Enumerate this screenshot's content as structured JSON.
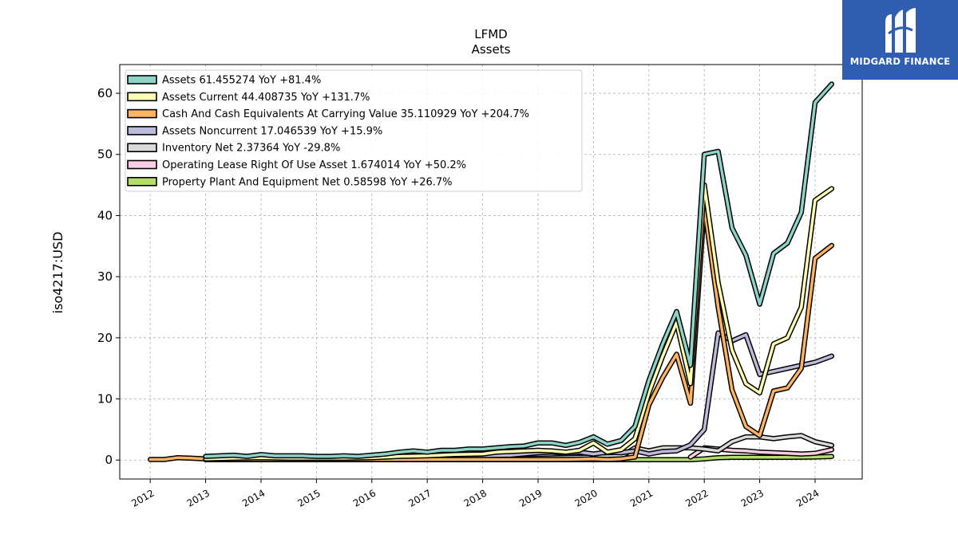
{
  "brand": {
    "name": "MIDGARD FINANCE",
    "logo_icon": "midgard-m-logo-icon",
    "bg_color": "#2f5db0"
  },
  "chart_data": {
    "type": "line",
    "title": "LFMD",
    "subtitle": "Assets",
    "ylabel": "iso4217:USD",
    "xlabel": "",
    "xlim": [
      2011.45,
      2024.85
    ],
    "ylim": [
      -3.1,
      64.7
    ],
    "yticks": [
      0,
      10,
      20,
      30,
      40,
      50,
      60
    ],
    "xticks": [
      "2012",
      "2013",
      "2014",
      "2015",
      "2016",
      "2017",
      "2018",
      "2019",
      "2020",
      "2021",
      "2022",
      "2023",
      "2024"
    ],
    "grid": true,
    "legend_position": "upper-left",
    "series": [
      {
        "name": "Assets  61.455274 YoY +81.4%",
        "color": "#8dd3c7",
        "points": [
          [
            2013.0,
            0.6
          ],
          [
            2013.25,
            0.7
          ],
          [
            2013.5,
            0.8
          ],
          [
            2013.75,
            0.6
          ],
          [
            2014.0,
            0.9
          ],
          [
            2014.25,
            0.7
          ],
          [
            2014.5,
            0.7
          ],
          [
            2014.75,
            0.7
          ],
          [
            2015.0,
            0.6
          ],
          [
            2015.25,
            0.6
          ],
          [
            2015.5,
            0.7
          ],
          [
            2015.75,
            0.6
          ],
          [
            2016.0,
            0.8
          ],
          [
            2016.25,
            1.0
          ],
          [
            2016.5,
            1.3
          ],
          [
            2016.75,
            1.5
          ],
          [
            2017.0,
            1.3
          ],
          [
            2017.25,
            1.6
          ],
          [
            2017.5,
            1.6
          ],
          [
            2017.75,
            1.8
          ],
          [
            2018.0,
            1.8
          ],
          [
            2018.25,
            2.0
          ],
          [
            2018.5,
            2.2
          ],
          [
            2018.75,
            2.3
          ],
          [
            2019.0,
            2.8
          ],
          [
            2019.25,
            2.8
          ],
          [
            2019.5,
            2.4
          ],
          [
            2019.75,
            2.9
          ],
          [
            2020.0,
            3.8
          ],
          [
            2020.25,
            2.6
          ],
          [
            2020.5,
            3.2
          ],
          [
            2020.75,
            5.5
          ],
          [
            2021.0,
            13.0
          ],
          [
            2021.25,
            19.0
          ],
          [
            2021.5,
            24.3
          ],
          [
            2021.75,
            15.5
          ],
          [
            2022.0,
            50.0
          ],
          [
            2022.25,
            50.5
          ],
          [
            2022.5,
            38.0
          ],
          [
            2022.75,
            33.5
          ],
          [
            2023.0,
            25.5
          ],
          [
            2023.25,
            33.8
          ],
          [
            2023.5,
            35.5
          ],
          [
            2023.75,
            40.5
          ],
          [
            2024.0,
            58.5
          ],
          [
            2024.3,
            61.5
          ]
        ]
      },
      {
        "name": "Assets Current  44.408735 YoY +131.7%",
        "color": "#ffffb3",
        "points": [
          [
            2013.0,
            0.2
          ],
          [
            2013.5,
            0.3
          ],
          [
            2014.0,
            0.4
          ],
          [
            2014.5,
            0.3
          ],
          [
            2015.0,
            0.3
          ],
          [
            2015.5,
            0.3
          ],
          [
            2016.0,
            0.4
          ],
          [
            2016.5,
            0.6
          ],
          [
            2017.0,
            0.7
          ],
          [
            2017.5,
            0.9
          ],
          [
            2018.0,
            1.0
          ],
          [
            2018.25,
            1.3
          ],
          [
            2018.5,
            1.4
          ],
          [
            2018.75,
            1.5
          ],
          [
            2019.0,
            1.6
          ],
          [
            2019.25,
            1.5
          ],
          [
            2019.5,
            1.3
          ],
          [
            2019.75,
            1.6
          ],
          [
            2020.0,
            2.8
          ],
          [
            2020.25,
            1.3
          ],
          [
            2020.5,
            1.7
          ],
          [
            2020.75,
            3.5
          ],
          [
            2021.0,
            11.0
          ],
          [
            2021.25,
            17.0
          ],
          [
            2021.5,
            22.5
          ],
          [
            2021.75,
            12.5
          ],
          [
            2022.0,
            45.0
          ],
          [
            2022.25,
            29.0
          ],
          [
            2022.5,
            18.0
          ],
          [
            2022.75,
            12.5
          ],
          [
            2023.0,
            11.0
          ],
          [
            2023.25,
            19.0
          ],
          [
            2023.5,
            20.0
          ],
          [
            2023.75,
            25.0
          ],
          [
            2024.0,
            42.5
          ],
          [
            2024.3,
            44.4
          ]
        ]
      },
      {
        "name": "Cash And Cash Equivalents At Carrying Value  35.110929 YoY +204.7%",
        "color": "#fdb462",
        "points": [
          [
            2012.0,
            0.1
          ],
          [
            2012.25,
            0.1
          ],
          [
            2012.5,
            0.4
          ],
          [
            2012.75,
            0.3
          ],
          [
            2013.0,
            0.2
          ],
          [
            2013.5,
            0.1
          ],
          [
            2014.0,
            0.1
          ],
          [
            2014.5,
            0.1
          ],
          [
            2015.0,
            0.1
          ],
          [
            2015.5,
            0.1
          ],
          [
            2016.0,
            0.1
          ],
          [
            2016.5,
            0.1
          ],
          [
            2017.0,
            0.1
          ],
          [
            2017.5,
            0.1
          ],
          [
            2018.0,
            0.1
          ],
          [
            2018.5,
            0.1
          ],
          [
            2019.0,
            0.1
          ],
          [
            2019.5,
            0.1
          ],
          [
            2020.0,
            0.2
          ],
          [
            2020.25,
            0.1
          ],
          [
            2020.5,
            0.2
          ],
          [
            2020.75,
            0.5
          ],
          [
            2021.0,
            9.0
          ],
          [
            2021.25,
            13.5
          ],
          [
            2021.5,
            17.3
          ],
          [
            2021.75,
            9.3
          ],
          [
            2022.0,
            41.5
          ],
          [
            2022.25,
            25.0
          ],
          [
            2022.5,
            11.5
          ],
          [
            2022.75,
            5.5
          ],
          [
            2023.0,
            4.0
          ],
          [
            2023.25,
            11.3
          ],
          [
            2023.5,
            11.8
          ],
          [
            2023.75,
            15.0
          ],
          [
            2024.0,
            33.0
          ],
          [
            2024.3,
            35.1
          ]
        ]
      },
      {
        "name": "Assets Noncurrent  17.046539 YoY +15.9%",
        "color": "#bebada",
        "points": [
          [
            2013.0,
            0.3
          ],
          [
            2013.5,
            0.3
          ],
          [
            2014.0,
            0.3
          ],
          [
            2014.5,
            0.3
          ],
          [
            2015.0,
            0.3
          ],
          [
            2015.5,
            0.3
          ],
          [
            2016.0,
            0.3
          ],
          [
            2016.5,
            0.4
          ],
          [
            2017.0,
            0.5
          ],
          [
            2017.5,
            0.6
          ],
          [
            2018.0,
            0.7
          ],
          [
            2018.5,
            0.8
          ],
          [
            2019.0,
            1.2
          ],
          [
            2019.25,
            1.3
          ],
          [
            2019.5,
            1.1
          ],
          [
            2019.75,
            1.3
          ],
          [
            2020.0,
            1.0
          ],
          [
            2020.25,
            1.3
          ],
          [
            2020.5,
            1.2
          ],
          [
            2020.75,
            1.5
          ],
          [
            2021.0,
            1.0
          ],
          [
            2021.25,
            1.4
          ],
          [
            2021.5,
            1.5
          ],
          [
            2021.75,
            2.5
          ],
          [
            2022.0,
            5.0
          ],
          [
            2022.25,
            20.8
          ],
          [
            2022.5,
            19.5
          ],
          [
            2022.75,
            20.5
          ],
          [
            2023.0,
            14.0
          ],
          [
            2023.25,
            14.5
          ],
          [
            2023.5,
            15.0
          ],
          [
            2023.75,
            15.5
          ],
          [
            2024.0,
            16.0
          ],
          [
            2024.3,
            17.0
          ]
        ]
      },
      {
        "name": "Inventory Net  2.37364 YoY -29.8%",
        "color": "#d9d9d9",
        "points": [
          [
            2013.0,
            0.1
          ],
          [
            2014.0,
            0.1
          ],
          [
            2015.0,
            0.1
          ],
          [
            2016.0,
            0.1
          ],
          [
            2017.0,
            0.2
          ],
          [
            2018.0,
            0.2
          ],
          [
            2019.0,
            0.3
          ],
          [
            2020.0,
            0.5
          ],
          [
            2020.5,
            0.6
          ],
          [
            2020.75,
            2.0
          ],
          [
            2021.0,
            1.5
          ],
          [
            2021.25,
            2.0
          ],
          [
            2021.5,
            2.0
          ],
          [
            2021.75,
            2.0
          ],
          [
            2022.0,
            1.8
          ],
          [
            2022.25,
            1.5
          ],
          [
            2022.5,
            3.0
          ],
          [
            2022.75,
            3.8
          ],
          [
            2023.0,
            3.8
          ],
          [
            2023.25,
            3.5
          ],
          [
            2023.5,
            3.8
          ],
          [
            2023.75,
            4.0
          ],
          [
            2024.0,
            3.0
          ],
          [
            2024.3,
            2.4
          ]
        ]
      },
      {
        "name": "Operating Lease Right Of Use Asset  1.674014 YoY +50.2%",
        "color": "#fccde5",
        "points": [
          [
            2021.75,
            0.5
          ],
          [
            2022.0,
            2.0
          ],
          [
            2022.25,
            1.8
          ],
          [
            2022.5,
            1.6
          ],
          [
            2022.75,
            1.5
          ],
          [
            2023.0,
            1.3
          ],
          [
            2023.25,
            1.2
          ],
          [
            2023.5,
            1.1
          ],
          [
            2023.75,
            1.0
          ],
          [
            2024.0,
            1.1
          ],
          [
            2024.3,
            1.7
          ]
        ]
      },
      {
        "name": "Property Plant And Equipment Net  0.58598 YoY +26.7%",
        "color": "#b3de69",
        "points": [
          [
            2013.0,
            0.05
          ],
          [
            2014.0,
            0.05
          ],
          [
            2015.0,
            0.05
          ],
          [
            2016.0,
            0.05
          ],
          [
            2017.0,
            0.05
          ],
          [
            2018.0,
            0.05
          ],
          [
            2019.0,
            0.05
          ],
          [
            2020.0,
            0.05
          ],
          [
            2021.0,
            0.05
          ],
          [
            2021.5,
            0.05
          ],
          [
            2021.75,
            0.05
          ],
          [
            2022.0,
            0.2
          ],
          [
            2022.25,
            0.4
          ],
          [
            2022.5,
            0.45
          ],
          [
            2022.75,
            0.45
          ],
          [
            2023.0,
            0.45
          ],
          [
            2023.5,
            0.45
          ],
          [
            2024.0,
            0.5
          ],
          [
            2024.3,
            0.59
          ]
        ]
      }
    ]
  }
}
